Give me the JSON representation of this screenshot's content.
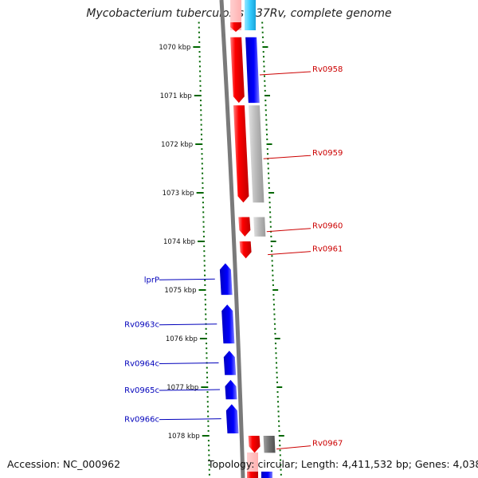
{
  "title": "Mycobacterium tuberculosis H37Rv, complete genome",
  "footer": {
    "accession": "Accession: NC_000962",
    "topology": "Topology: circular; Length: 4,411,532 bp; Genes: 4,038"
  },
  "scale": {
    "unit": "kbp",
    "ticks": [
      {
        "kbp": 1070,
        "label": "1070 kbp"
      },
      {
        "kbp": 1071,
        "label": "1071 kbp"
      },
      {
        "kbp": 1072,
        "label": "1072 kbp"
      },
      {
        "kbp": 1073,
        "label": "1073 kbp"
      },
      {
        "kbp": 1074,
        "label": "1074 kbp"
      },
      {
        "kbp": 1075,
        "label": "1075 kbp"
      },
      {
        "kbp": 1076,
        "label": "1076 kbp"
      },
      {
        "kbp": 1077,
        "label": "1077 kbp"
      },
      {
        "kbp": 1078,
        "label": "1078 kbp"
      }
    ]
  },
  "colors": {
    "forward_gene": "#ff0000",
    "reverse_gene": "#0000ee",
    "forward_label": "#cc0000",
    "reverse_label": "#0000bb",
    "feature_blue": "#0000ff",
    "feature_gray": "#b8b8b8",
    "feature_dark_gray": "#707070",
    "feature_cyan": "#33ccff",
    "backbone": "#7a7a7a",
    "tick_green": "#006600"
  },
  "genes": [
    {
      "name": "Rv0958",
      "strand": "+",
      "start_kbp": 1069.8,
      "end_kbp": 1071.15
    },
    {
      "name": "Rv0959",
      "strand": "+",
      "start_kbp": 1071.2,
      "end_kbp": 1073.2
    },
    {
      "name": "Rv0960",
      "strand": "+",
      "start_kbp": 1073.5,
      "end_kbp": 1073.9
    },
    {
      "name": "Rv0961",
      "strand": "+",
      "start_kbp": 1074.0,
      "end_kbp": 1074.35
    },
    {
      "name": "lprP",
      "strand": "-",
      "start_kbp": 1074.45,
      "end_kbp": 1075.1
    },
    {
      "name": "Rv0963c",
      "strand": "-",
      "start_kbp": 1075.3,
      "end_kbp": 1076.1
    },
    {
      "name": "Rv0964c",
      "strand": "-",
      "start_kbp": 1076.25,
      "end_kbp": 1076.75
    },
    {
      "name": "Rv0965c",
      "strand": "-",
      "start_kbp": 1076.85,
      "end_kbp": 1077.25
    },
    {
      "name": "Rv0966c",
      "strand": "-",
      "start_kbp": 1077.35,
      "end_kbp": 1077.95
    },
    {
      "name": "Rv0967",
      "strand": "+",
      "start_kbp": 1078.0,
      "end_kbp": 1078.35
    }
  ]
}
